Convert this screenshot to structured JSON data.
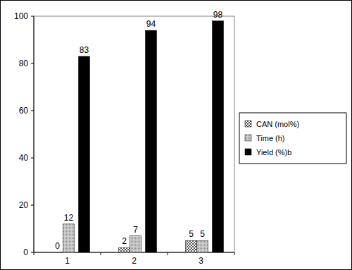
{
  "chart_data": {
    "type": "bar",
    "categories": [
      "1",
      "2",
      "3"
    ],
    "series": [
      {
        "name": "CAN (mol%)",
        "color": "#555555",
        "values": [
          0,
          2,
          5
        ]
      },
      {
        "name": "Time (h)",
        "color": "#8c8c8c",
        "values": [
          12,
          7,
          5
        ]
      },
      {
        "name": "Yield (%)b",
        "color": "#000000",
        "values": [
          83,
          94,
          98
        ]
      }
    ],
    "ylim": [
      0,
      100
    ],
    "yticks": [
      0,
      20,
      40,
      60,
      80,
      100
    ],
    "grid": false,
    "legend": "right",
    "data_labels": true
  }
}
